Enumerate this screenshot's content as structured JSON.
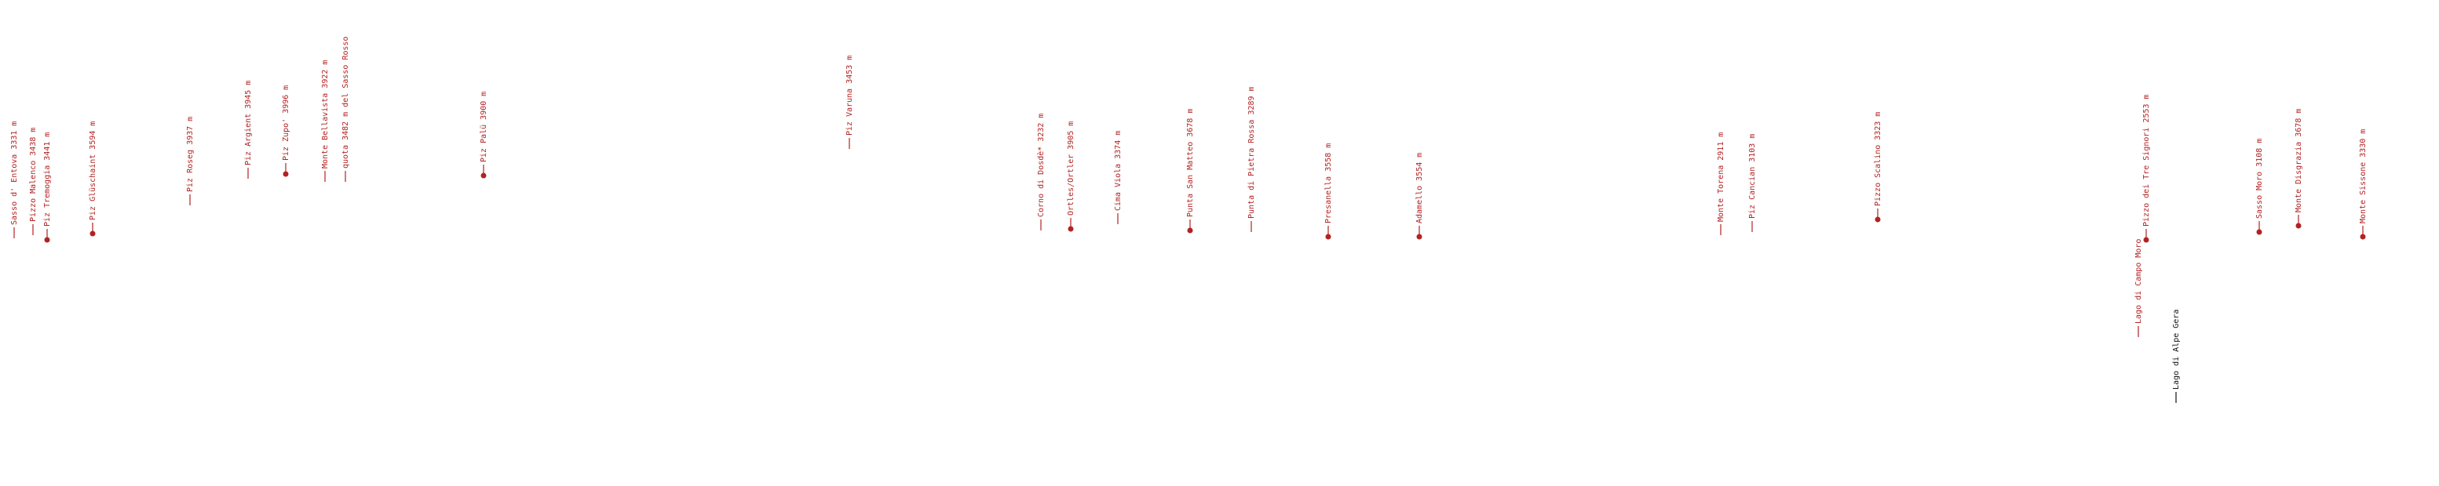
{
  "labels": [
    "Sasso d' Entova 3331 m",
    "Pizzo Malenco 3438 m",
    "Piz Tremoggia 3441 m",
    "Piz Glüschaint 3594 m",
    "Piz Roseg 3937 m",
    "Piz Argient 3945 m",
    "Piz Zupo' 3996 m",
    "Monte Bellavista 3922 m",
    "quota 3482 m del Sasso Rosso",
    "Piz Palü 3900 m",
    "Piz Varuna 3453 m",
    "Corno di Dosdè* 3232 m",
    "Ortles/Ortler 3905 m",
    "Cima Viola 3374 m",
    "Punta San Matteo 3678 m",
    "Punta di Pietra Rossa 3289 m",
    "Presanella 3558 m",
    "Adamello 3554 m",
    "Monte Torena 2911 m",
    "Piz Cancian 3103 m",
    "Pizzo Scalino 3323 m",
    "Lago di Campo Moro",
    "Pizzo dei Tre Signori 2553 m",
    "Lago di Alpe Gera",
    "Sasso Moro 3108 m",
    "Monte Disgrazia 3678 m",
    "Monte Sissone 3330 m"
  ]
}
